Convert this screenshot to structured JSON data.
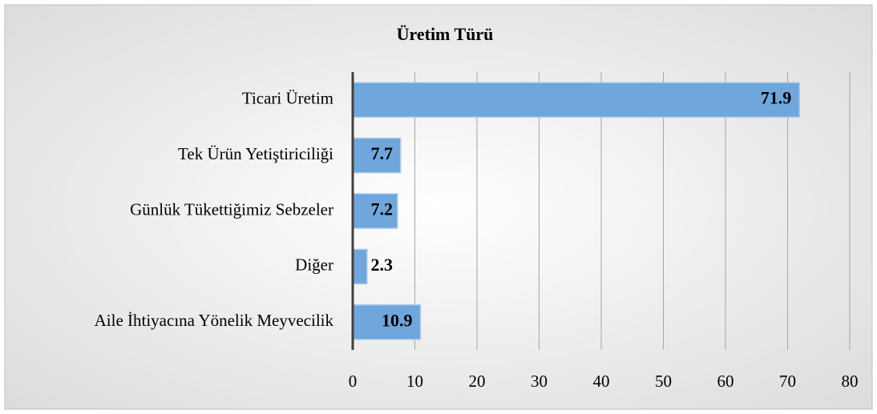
{
  "chart_data": {
    "type": "barh",
    "title": "Üretim Türü",
    "categories": [
      "Ticari Üretim",
      "Tek Ürün Yetiştiriciliği",
      "Günlük Tükettiğimiz Sebzeler",
      "Diğer",
      "Aile İhtiyacına Yönelik Meyvecilik"
    ],
    "values": [
      71.9,
      7.7,
      7.2,
      2.3,
      10.9
    ],
    "color": "#6fa6db",
    "xlim": [
      0,
      80
    ],
    "xticks": [
      0,
      10,
      20,
      30,
      40,
      50,
      60,
      70,
      80
    ],
    "grid": true
  }
}
